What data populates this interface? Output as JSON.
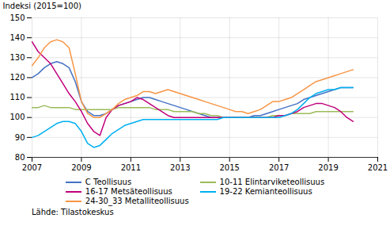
{
  "chart_data": {
    "type": "line",
    "ylabel": "Indeksi (2015=100)",
    "annotations": [
      "Lähde: Tilastokeskus"
    ],
    "xlim": [
      2007.0,
      2021.0
    ],
    "xticks": [
      2007,
      2009,
      2011,
      2013,
      2015,
      2017,
      2019,
      2021
    ],
    "ylim": [
      80,
      150
    ],
    "yticks": [
      80,
      90,
      100,
      110,
      120,
      130,
      140,
      150
    ],
    "grid": true,
    "legend": "bottom",
    "x": [
      2007.0,
      2007.25,
      2007.5,
      2007.75,
      2008.0,
      2008.25,
      2008.5,
      2008.75,
      2009.0,
      2009.25,
      2009.5,
      2009.75,
      2010.0,
      2010.25,
      2010.5,
      2010.75,
      2011.0,
      2011.25,
      2011.5,
      2011.75,
      2012.0,
      2012.25,
      2012.5,
      2012.75,
      2013.0,
      2013.25,
      2013.5,
      2013.75,
      2014.0,
      2014.25,
      2014.5,
      2014.75,
      2015.0,
      2015.25,
      2015.5,
      2015.75,
      2016.0,
      2016.25,
      2016.5,
      2016.75,
      2017.0,
      2017.25,
      2017.5,
      2017.75,
      2018.0,
      2018.25,
      2018.5,
      2018.75,
      2019.0,
      2019.25,
      2019.5,
      2019.75,
      2020.0
    ],
    "series": [
      {
        "name": "C Teollisuus",
        "color": "#4472C4",
        "values": [
          120,
          122,
          125,
          127,
          128,
          127,
          125,
          118,
          108,
          103,
          101,
          101,
          102,
          104,
          106,
          107,
          108,
          109,
          110,
          110,
          109,
          108,
          107,
          106,
          105,
          104,
          103,
          102,
          101,
          100,
          100,
          100,
          100,
          100,
          100,
          100,
          101,
          101,
          102,
          103,
          104,
          105,
          106,
          107,
          109,
          110,
          111,
          112,
          113,
          114,
          115,
          115,
          115
        ]
      },
      {
        "name": "10-11 Elintarviketeollisuus",
        "color": "#9BBB59",
        "values": [
          105,
          105,
          106,
          105,
          105,
          105,
          105,
          104,
          104,
          104,
          104,
          104,
          104,
          104,
          105,
          105,
          105,
          105,
          105,
          105,
          104,
          104,
          104,
          103,
          103,
          103,
          103,
          102,
          102,
          101,
          101,
          100,
          100,
          100,
          100,
          100,
          100,
          100,
          100,
          101,
          101,
          101,
          102,
          102,
          102,
          102,
          103,
          103,
          103,
          103,
          103,
          103,
          103
        ]
      },
      {
        "name": "16-17 Metsäteollisuus",
        "color": "#C0007B",
        "values": [
          138,
          133,
          130,
          127,
          122,
          117,
          112,
          108,
          103,
          97,
          93,
          91,
          100,
          104,
          106,
          107,
          108,
          110,
          109,
          107,
          105,
          103,
          101,
          100,
          100,
          100,
          100,
          100,
          100,
          100,
          100,
          100,
          100,
          100,
          100,
          100,
          100,
          100,
          100,
          100,
          101,
          101,
          102,
          103,
          105,
          106,
          107,
          107,
          106,
          105,
          103,
          100,
          98
        ]
      },
      {
        "name": "19-22 Kemianteollisuus",
        "color": "#00B0F0",
        "values": [
          90,
          91,
          93,
          95,
          97,
          98,
          98,
          97,
          93,
          87,
          85,
          86,
          89,
          92,
          94,
          96,
          97,
          98,
          99,
          99,
          99,
          99,
          99,
          99,
          99,
          99,
          99,
          99,
          99,
          99,
          99,
          100,
          100,
          100,
          100,
          100,
          100,
          100,
          100,
          100,
          100,
          101,
          102,
          104,
          107,
          110,
          112,
          113,
          114,
          114,
          115,
          115,
          115
        ]
      },
      {
        "name": "24-30_33 Metalliteollisuus",
        "color": "#F79646",
        "values": [
          126,
          130,
          135,
          138,
          139,
          138,
          135,
          122,
          108,
          102,
          100,
          100,
          102,
          104,
          107,
          109,
          110,
          111,
          113,
          113,
          112,
          113,
          114,
          113,
          112,
          111,
          110,
          109,
          108,
          107,
          106,
          105,
          104,
          103,
          103,
          102,
          103,
          104,
          106,
          108,
          108,
          109,
          110,
          112,
          114,
          116,
          118,
          119,
          120,
          121,
          122,
          123,
          124
        ]
      }
    ]
  }
}
